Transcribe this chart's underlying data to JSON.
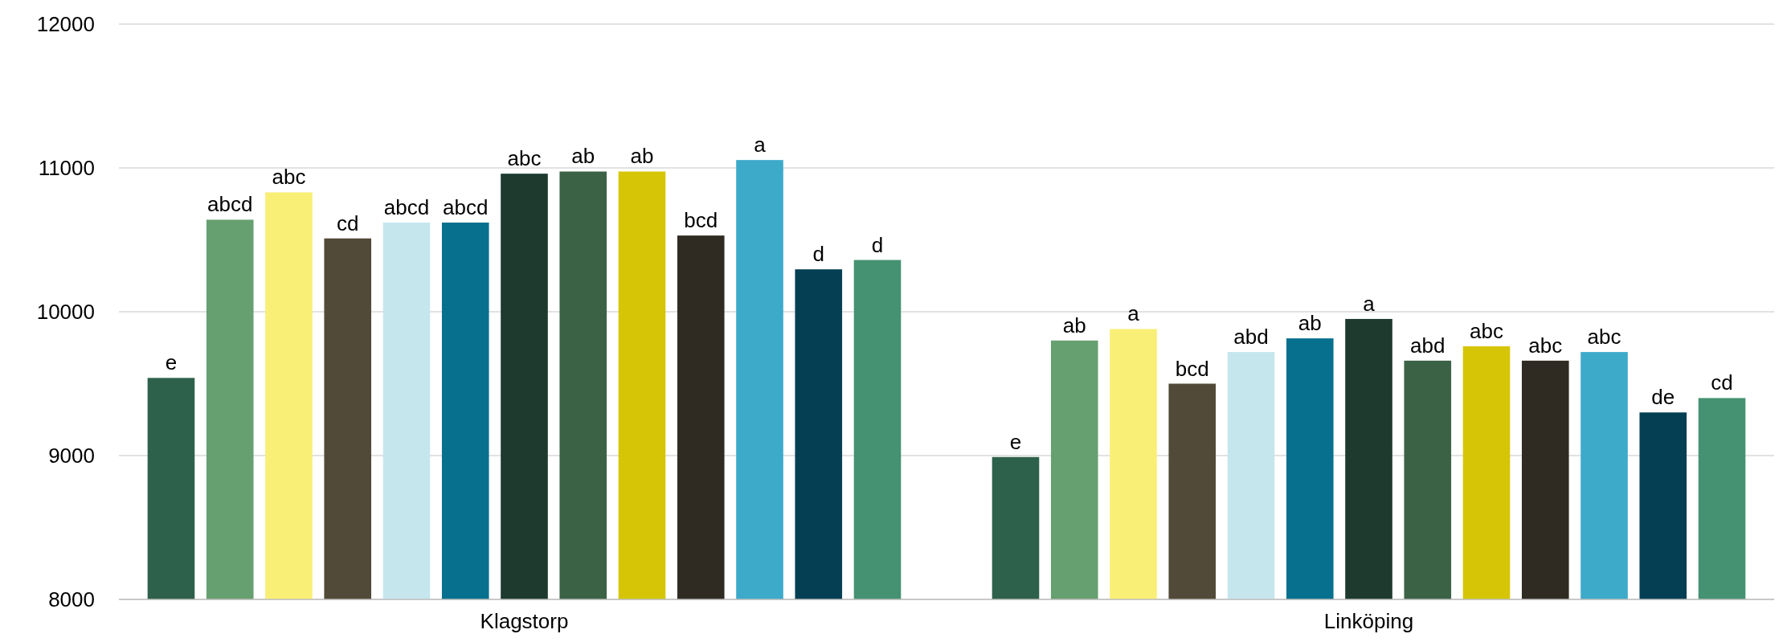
{
  "chart_data": {
    "type": "bar",
    "categories": [
      "Klagstorp",
      "Linköping"
    ],
    "ylim": [
      8000,
      12000
    ],
    "yticks": [
      8000,
      9000,
      10000,
      11000,
      12000
    ],
    "grid": "y",
    "series": [
      {
        "color": "#2d614b",
        "values": [
          9540,
          8990
        ],
        "value_labels": [
          "e",
          "e"
        ]
      },
      {
        "color": "#66a070",
        "values": [
          10640,
          9800
        ],
        "value_labels": [
          "abcd",
          "ab"
        ]
      },
      {
        "color": "#f9ef76",
        "values": [
          10830,
          9880
        ],
        "value_labels": [
          "abc",
          "a"
        ]
      },
      {
        "color": "#524a38",
        "values": [
          10510,
          9500
        ],
        "value_labels": [
          "cd",
          "bcd"
        ]
      },
      {
        "color": "#c6e6ee",
        "values": [
          10620,
          9720
        ],
        "value_labels": [
          "abcd",
          "abd"
        ]
      },
      {
        "color": "#07708e",
        "values": [
          10620,
          9815
        ],
        "value_labels": [
          "abcd",
          "ab"
        ]
      },
      {
        "color": "#1e3a2e",
        "values": [
          10960,
          9950
        ],
        "value_labels": [
          "abc",
          "a"
        ]
      },
      {
        "color": "#3c6246",
        "values": [
          10975,
          9660
        ],
        "value_labels": [
          "ab",
          "abd"
        ]
      },
      {
        "color": "#d6c506",
        "values": [
          10975,
          9760
        ],
        "value_labels": [
          "ab",
          "abc"
        ]
      },
      {
        "color": "#302b22",
        "values": [
          10530,
          9660
        ],
        "value_labels": [
          "bcd",
          "abc"
        ]
      },
      {
        "color": "#3daaca",
        "values": [
          11055,
          9720
        ],
        "value_labels": [
          "a",
          "abc"
        ]
      },
      {
        "color": "#053f54",
        "values": [
          10295,
          9300
        ],
        "value_labels": [
          "d",
          "de"
        ]
      },
      {
        "color": "#459272",
        "values": [
          10360,
          9400
        ],
        "value_labels": [
          "d",
          "cd"
        ]
      }
    ]
  }
}
